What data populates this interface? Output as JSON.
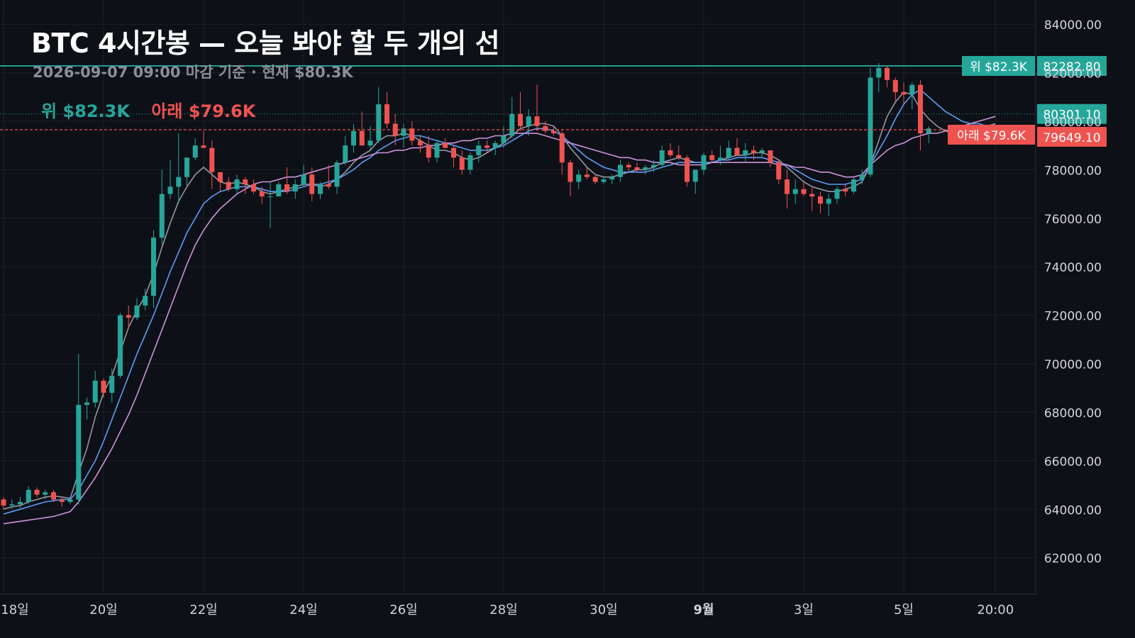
{
  "header": {
    "title": "BTC 4시간봉 — 오늘 봐야 할 두 개의 선",
    "subtitle": "2026-09-07 09:00 마감 기준 · 현재 $80.3K"
  },
  "legend": {
    "upper_label": "위 $82.3K",
    "lower_label": "아래 $79.6K"
  },
  "colors": {
    "background": "#0e1017",
    "grid": "#1d2029",
    "up": "#26a69a",
    "down": "#ef5350",
    "upper_line": "#26a69a",
    "lower_line": "#ef5350",
    "ma_fast": "#9598a1",
    "ma_mid": "#5b9cf6",
    "ma_slow": "#ce93d8",
    "axis_text": "#d1d4dc"
  },
  "chart_data": {
    "type": "candlestick",
    "timeframe": "4h",
    "ylim": [
      60500,
      85000
    ],
    "yticks": [
      62000,
      64000,
      66000,
      68000,
      70000,
      72000,
      74000,
      76000,
      78000,
      80000,
      82000,
      84000
    ],
    "ytick_labels": [
      "62000.00",
      "64000.00",
      "66000.00",
      "68000.00",
      "70000.00",
      "72000.00",
      "74000.00",
      "76000.00",
      "78000.00",
      "80000.00",
      "82000.00",
      "84000.00"
    ],
    "xticks": [
      {
        "label": "18일",
        "index": 0
      },
      {
        "label": "20일",
        "index": 12
      },
      {
        "label": "22일",
        "index": 24
      },
      {
        "label": "24일",
        "index": 36
      },
      {
        "label": "26일",
        "index": 48
      },
      {
        "label": "28일",
        "index": 60
      },
      {
        "label": "30일",
        "index": 72
      },
      {
        "label": "9월",
        "index": 84,
        "bold": true
      },
      {
        "label": "3일",
        "index": 96
      },
      {
        "label": "5일",
        "index": 108
      },
      {
        "label": "20:00",
        "index": 119
      }
    ],
    "ohlc": [
      [
        64400,
        64500,
        64000,
        64150
      ],
      [
        64150,
        64400,
        64000,
        64200
      ],
      [
        64200,
        64500,
        64050,
        64300
      ],
      [
        64300,
        64950,
        64200,
        64800
      ],
      [
        64800,
        64900,
        64500,
        64600
      ],
      [
        64600,
        64800,
        64400,
        64700
      ],
      [
        64700,
        64800,
        64300,
        64400
      ],
      [
        64400,
        64500,
        64100,
        64300
      ],
      [
        64300,
        64500,
        64200,
        64400
      ],
      [
        64400,
        70400,
        64200,
        68300
      ],
      [
        68300,
        68600,
        67700,
        68400
      ],
      [
        68400,
        69700,
        68200,
        69300
      ],
      [
        69300,
        69400,
        68600,
        68800
      ],
      [
        68800,
        69800,
        68400,
        69500
      ],
      [
        69500,
        72100,
        69400,
        72000
      ],
      [
        72000,
        72400,
        71500,
        71900
      ],
      [
        71900,
        72700,
        71800,
        72400
      ],
      [
        72400,
        73100,
        72200,
        72800
      ],
      [
        72800,
        75500,
        72300,
        75200
      ],
      [
        75200,
        78000,
        74900,
        77000
      ],
      [
        77000,
        78400,
        76800,
        77300
      ],
      [
        77300,
        79500,
        76600,
        77700
      ],
      [
        77700,
        78500,
        77300,
        78500
      ],
      [
        78500,
        79300,
        78400,
        79000
      ],
      [
        79000,
        79600,
        78900,
        78900
      ],
      [
        78900,
        79200,
        77200,
        77900
      ],
      [
        77900,
        77800,
        77100,
        77500
      ],
      [
        77500,
        77700,
        77100,
        77200
      ],
      [
        77200,
        77800,
        77000,
        77600
      ],
      [
        77600,
        77700,
        77000,
        77400
      ],
      [
        77400,
        77600,
        77000,
        77100
      ],
      [
        77100,
        77300,
        76600,
        76900
      ],
      [
        76900,
        77500,
        75600,
        76900
      ],
      [
        76900,
        77500,
        76900,
        77400
      ],
      [
        77400,
        78100,
        77000,
        77100
      ],
      [
        77100,
        77600,
        76800,
        77400
      ],
      [
        77400,
        78200,
        77300,
        77800
      ],
      [
        77800,
        78100,
        76700,
        77000
      ],
      [
        77000,
        77500,
        76800,
        77400
      ],
      [
        77400,
        78200,
        77200,
        77300
      ],
      [
        77300,
        78400,
        77000,
        78300
      ],
      [
        78300,
        79400,
        78200,
        79000
      ],
      [
        79000,
        79900,
        78700,
        79600
      ],
      [
        79600,
        80400,
        79200,
        79000
      ],
      [
        79000,
        79800,
        78800,
        79200
      ],
      [
        79200,
        81400,
        79100,
        80700
      ],
      [
        80700,
        81200,
        79700,
        79900
      ],
      [
        79900,
        80300,
        79000,
        79400
      ],
      [
        79400,
        79900,
        78900,
        79700
      ],
      [
        79700,
        80000,
        79000,
        79200
      ],
      [
        79200,
        79400,
        78700,
        79000
      ],
      [
        79000,
        79400,
        78300,
        78500
      ],
      [
        78500,
        79200,
        78300,
        79100
      ],
      [
        79100,
        79300,
        78900,
        78900
      ],
      [
        78900,
        79000,
        78100,
        78500
      ],
      [
        78500,
        78800,
        77800,
        78000
      ],
      [
        78000,
        78700,
        77800,
        78600
      ],
      [
        78600,
        79200,
        78300,
        79000
      ],
      [
        79000,
        79200,
        78700,
        78900
      ],
      [
        78900,
        79200,
        78600,
        79100
      ],
      [
        79100,
        79800,
        78900,
        79400
      ],
      [
        79400,
        81000,
        79300,
        80300
      ],
      [
        80300,
        81200,
        79600,
        79800
      ],
      [
        79800,
        80500,
        79400,
        80200
      ],
      [
        80200,
        81500,
        79600,
        79800
      ],
      [
        79800,
        80000,
        79500,
        79600
      ],
      [
        79600,
        79800,
        79400,
        79500
      ],
      [
        79500,
        79600,
        77800,
        78300
      ],
      [
        78300,
        78400,
        76900,
        77500
      ],
      [
        77500,
        78000,
        77200,
        77800
      ],
      [
        77800,
        78100,
        77600,
        77700
      ],
      [
        77700,
        77800,
        77400,
        77500
      ],
      [
        77500,
        77700,
        77400,
        77600
      ],
      [
        77600,
        77800,
        77400,
        77700
      ],
      [
        77700,
        78400,
        77500,
        78200
      ],
      [
        78200,
        78300,
        77900,
        78100
      ],
      [
        78100,
        78300,
        77900,
        78000
      ],
      [
        78000,
        78200,
        77800,
        78100
      ],
      [
        78100,
        78400,
        77900,
        78200
      ],
      [
        78200,
        79000,
        78100,
        78800
      ],
      [
        78800,
        79100,
        78500,
        78600
      ],
      [
        78600,
        79000,
        78400,
        78500
      ],
      [
        78500,
        78600,
        77300,
        77500
      ],
      [
        77500,
        78000,
        77000,
        78000
      ],
      [
        78000,
        78700,
        77800,
        78600
      ],
      [
        78600,
        78800,
        78300,
        78400
      ],
      [
        78400,
        79000,
        78200,
        78500
      ],
      [
        78500,
        79200,
        78400,
        78900
      ],
      [
        78900,
        79300,
        78700,
        78600
      ],
      [
        78600,
        79100,
        78300,
        78800
      ],
      [
        78800,
        79000,
        78400,
        78700
      ],
      [
        78700,
        78900,
        78500,
        78800
      ],
      [
        78800,
        78800,
        78100,
        78300
      ],
      [
        78300,
        78400,
        77400,
        77600
      ],
      [
        77600,
        78000,
        76400,
        77000
      ],
      [
        77000,
        77600,
        76600,
        77200
      ],
      [
        77200,
        77500,
        76900,
        77000
      ],
      [
        77000,
        77300,
        76300,
        76900
      ],
      [
        76900,
        77100,
        76200,
        76600
      ],
      [
        76600,
        77000,
        76100,
        76800
      ],
      [
        76800,
        77300,
        76600,
        77200
      ],
      [
        77200,
        77400,
        76900,
        77100
      ],
      [
        77100,
        77700,
        77000,
        77600
      ],
      [
        77600,
        78000,
        77400,
        77800
      ],
      [
        77800,
        82200,
        77700,
        81800
      ],
      [
        81800,
        82400,
        81200,
        82200
      ],
      [
        82200,
        82300,
        81400,
        81700
      ],
      [
        81700,
        81800,
        80800,
        81200
      ],
      [
        81200,
        81600,
        80700,
        81100
      ],
      [
        81100,
        81600,
        80500,
        81500
      ],
      [
        81500,
        81700,
        78800,
        79500
      ],
      [
        79500,
        79800,
        79100,
        79700
      ]
    ],
    "moving_averages": [
      {
        "id": "ma_fast",
        "values": [
          64000,
          64100,
          64150,
          64300,
          64400,
          64500,
          64550,
          64500,
          64450,
          65500,
          66500,
          67800,
          68800,
          69500,
          70500,
          71500,
          72200,
          72800,
          73700,
          74800,
          75800,
          76700,
          77300,
          77800,
          78100,
          77800,
          77500,
          77400,
          77500,
          77400,
          77300,
          77100,
          77000,
          77100,
          77200,
          77300,
          77400,
          77400,
          77300,
          77400,
          77600,
          77900,
          78300,
          78600,
          78800,
          79200,
          79400,
          79400,
          79500,
          79400,
          79200,
          79000,
          78800,
          78800,
          78700,
          78500,
          78400,
          78500,
          78700,
          78900,
          79100,
          79400,
          79700,
          79800,
          79900,
          79900,
          79800,
          79400,
          78900,
          78500,
          78100,
          77800,
          77700,
          77700,
          77800,
          77900,
          78000,
          78000,
          78100,
          78300,
          78400,
          78500,
          78400,
          78300,
          78300,
          78300,
          78400,
          78500,
          78600,
          78600,
          78700,
          78700,
          78600,
          78400,
          78100,
          77800,
          77500,
          77300,
          77200,
          77100,
          77100,
          77200,
          77300,
          77500,
          78200,
          79200,
          80200,
          80800,
          81200,
          81100,
          80500,
          80100,
          79800,
          79600,
          79500,
          79500,
          79600,
          79700,
          79800,
          79900
        ]
      },
      {
        "id": "ma_mid",
        "values": [
          63800,
          63900,
          64000,
          64100,
          64200,
          64300,
          64350,
          64400,
          64400,
          64800,
          65400,
          66000,
          66800,
          67700,
          68600,
          69500,
          70400,
          71200,
          72000,
          72900,
          73800,
          74600,
          75400,
          76000,
          76600,
          76900,
          77100,
          77200,
          77300,
          77300,
          77300,
          77200,
          77100,
          77100,
          77100,
          77200,
          77300,
          77400,
          77400,
          77500,
          77600,
          77800,
          78000,
          78300,
          78500,
          78800,
          79000,
          79200,
          79300,
          79400,
          79400,
          79300,
          79200,
          79100,
          79000,
          78900,
          78800,
          78800,
          78800,
          78900,
          79000,
          79200,
          79400,
          79600,
          79700,
          79700,
          79600,
          79400,
          79100,
          78800,
          78500,
          78300,
          78100,
          78000,
          77900,
          77900,
          77900,
          77900,
          78000,
          78100,
          78200,
          78300,
          78300,
          78300,
          78300,
          78300,
          78400,
          78400,
          78500,
          78500,
          78500,
          78500,
          78400,
          78300,
          78200,
          78000,
          77800,
          77600,
          77500,
          77400,
          77400,
          77400,
          77500,
          77600,
          78200,
          78800,
          79400,
          80100,
          80700,
          81100,
          81300,
          81000,
          80700,
          80400,
          80200,
          80000,
          79900,
          79900,
          79800,
          79800
        ]
      },
      {
        "id": "ma_slow",
        "values": [
          63400,
          63450,
          63500,
          63550,
          63600,
          63650,
          63700,
          63800,
          63900,
          64300,
          64800,
          65300,
          65900,
          66500,
          67200,
          67900,
          68700,
          69600,
          70500,
          71400,
          72300,
          73200,
          74100,
          74900,
          75500,
          76000,
          76400,
          76700,
          77000,
          77200,
          77400,
          77500,
          77500,
          77600,
          77700,
          77700,
          77800,
          77900,
          78000,
          78100,
          78200,
          78300,
          78400,
          78500,
          78600,
          78700,
          78700,
          78800,
          78800,
          78900,
          78900,
          79000,
          79000,
          79100,
          79100,
          79200,
          79200,
          79300,
          79300,
          79400,
          79400,
          79500,
          79500,
          79500,
          79500,
          79400,
          79300,
          79200,
          79100,
          79000,
          78900,
          78800,
          78700,
          78600,
          78500,
          78500,
          78400,
          78400,
          78300,
          78300,
          78300,
          78200,
          78200,
          78200,
          78200,
          78300,
          78300,
          78300,
          78300,
          78300,
          78300,
          78300,
          78300,
          78200,
          78200,
          78100,
          78100,
          78000,
          77900,
          77900,
          77800,
          77700,
          77700,
          77800,
          78200,
          78500,
          78800,
          79000,
          79100,
          79300,
          79400,
          79500,
          79500,
          79600,
          79700,
          79800,
          79900,
          80000,
          80100,
          80200
        ]
      }
    ],
    "upper_line": {
      "value": 82282.8,
      "price_label": "82282.80",
      "tag": "위 $82.3K"
    },
    "lower_line": {
      "value": 79649.1,
      "price_label": "79649.10",
      "tag": "아래 $79.6K"
    },
    "current_price": {
      "value": 80301.1,
      "price_label": "80301.10"
    }
  }
}
